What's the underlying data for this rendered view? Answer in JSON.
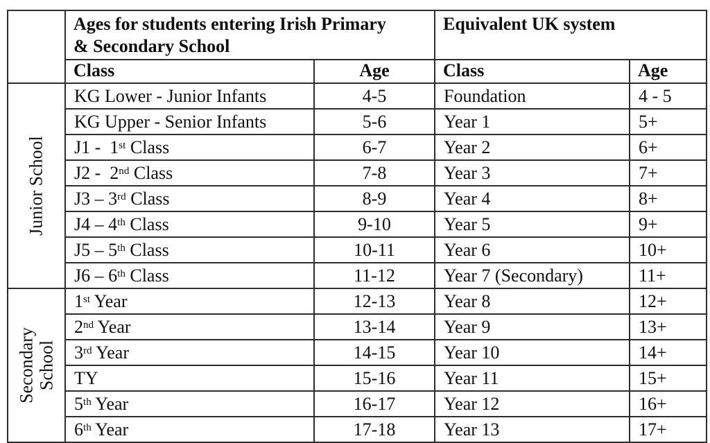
{
  "colors": {
    "border": "#2d2d2d",
    "text": "#101010",
    "background": "#ffffff"
  },
  "table": {
    "header": {
      "irish_title_lines": [
        "Ages for students entering Irish Primary",
        "& Secondary School"
      ],
      "uk_title": "Equivalent UK system",
      "col_class": "Class",
      "col_age": "Age"
    },
    "groups": [
      {
        "label_lines": [
          "Junior School"
        ],
        "rows": [
          {
            "class_parts": [
              {
                "t": "KG Lower - Junior Infants"
              }
            ],
            "age": "4-5",
            "uk_class": "Foundation",
            "uk_age": "4 - 5"
          },
          {
            "class_parts": [
              {
                "t": "KG Upper - Senior Infants"
              }
            ],
            "age": "5-6",
            "uk_class": "Year 1",
            "uk_age": "5+"
          },
          {
            "class_parts": [
              {
                "t": "J1 -  1"
              },
              {
                "sup": "st"
              },
              {
                "t": " Class"
              }
            ],
            "age": "6-7",
            "uk_class": "Year 2",
            "uk_age": "6+"
          },
          {
            "class_parts": [
              {
                "t": "J2 -  2"
              },
              {
                "sup": "nd"
              },
              {
                "t": " Class"
              }
            ],
            "age": "7-8",
            "uk_class": "Year 3",
            "uk_age": "7+"
          },
          {
            "class_parts": [
              {
                "t": "J3 – 3"
              },
              {
                "sup": "rd"
              },
              {
                "t": " Class"
              }
            ],
            "age": "8-9",
            "uk_class": "Year 4",
            "uk_age": "8+"
          },
          {
            "class_parts": [
              {
                "t": "J4 – 4"
              },
              {
                "sup": "th"
              },
              {
                "t": " Class"
              }
            ],
            "age": "9-10",
            "uk_class": "Year 5",
            "uk_age": "9+"
          },
          {
            "class_parts": [
              {
                "t": "J5 – 5"
              },
              {
                "sup": "th"
              },
              {
                "t": " Class"
              }
            ],
            "age": "10-11",
            "uk_class": "Year 6",
            "uk_age": "10+"
          },
          {
            "class_parts": [
              {
                "t": "J6 – 6"
              },
              {
                "sup": "th"
              },
              {
                "t": " Class"
              }
            ],
            "age": "11-12",
            "uk_class": "Year 7 (Secondary)",
            "uk_age": "11+"
          }
        ]
      },
      {
        "label_lines": [
          "Secondary",
          "School"
        ],
        "rows": [
          {
            "class_parts": [
              {
                "t": "1"
              },
              {
                "sup": "st"
              },
              {
                "t": " Year"
              }
            ],
            "age": "12-13",
            "uk_class": "Year 8",
            "uk_age": "12+"
          },
          {
            "class_parts": [
              {
                "t": "2"
              },
              {
                "sup": "nd"
              },
              {
                "t": " Year"
              }
            ],
            "age": "13-14",
            "uk_class": "Year 9",
            "uk_age": "13+"
          },
          {
            "class_parts": [
              {
                "t": "3"
              },
              {
                "sup": "rd"
              },
              {
                "t": " Year"
              }
            ],
            "age": "14-15",
            "uk_class": "Year 10",
            "uk_age": "14+"
          },
          {
            "class_parts": [
              {
                "t": "TY"
              }
            ],
            "age": "15-16",
            "uk_class": "Year 11",
            "uk_age": "15+"
          },
          {
            "class_parts": [
              {
                "t": "5"
              },
              {
                "sup": "th"
              },
              {
                "t": " Year"
              }
            ],
            "age": "16-17",
            "uk_class": "Year 12",
            "uk_age": "16+"
          },
          {
            "class_parts": [
              {
                "t": "6"
              },
              {
                "sup": "th"
              },
              {
                "t": " Year"
              }
            ],
            "age": "17-18",
            "uk_class": "Year 13",
            "uk_age": "17+"
          }
        ]
      }
    ]
  }
}
